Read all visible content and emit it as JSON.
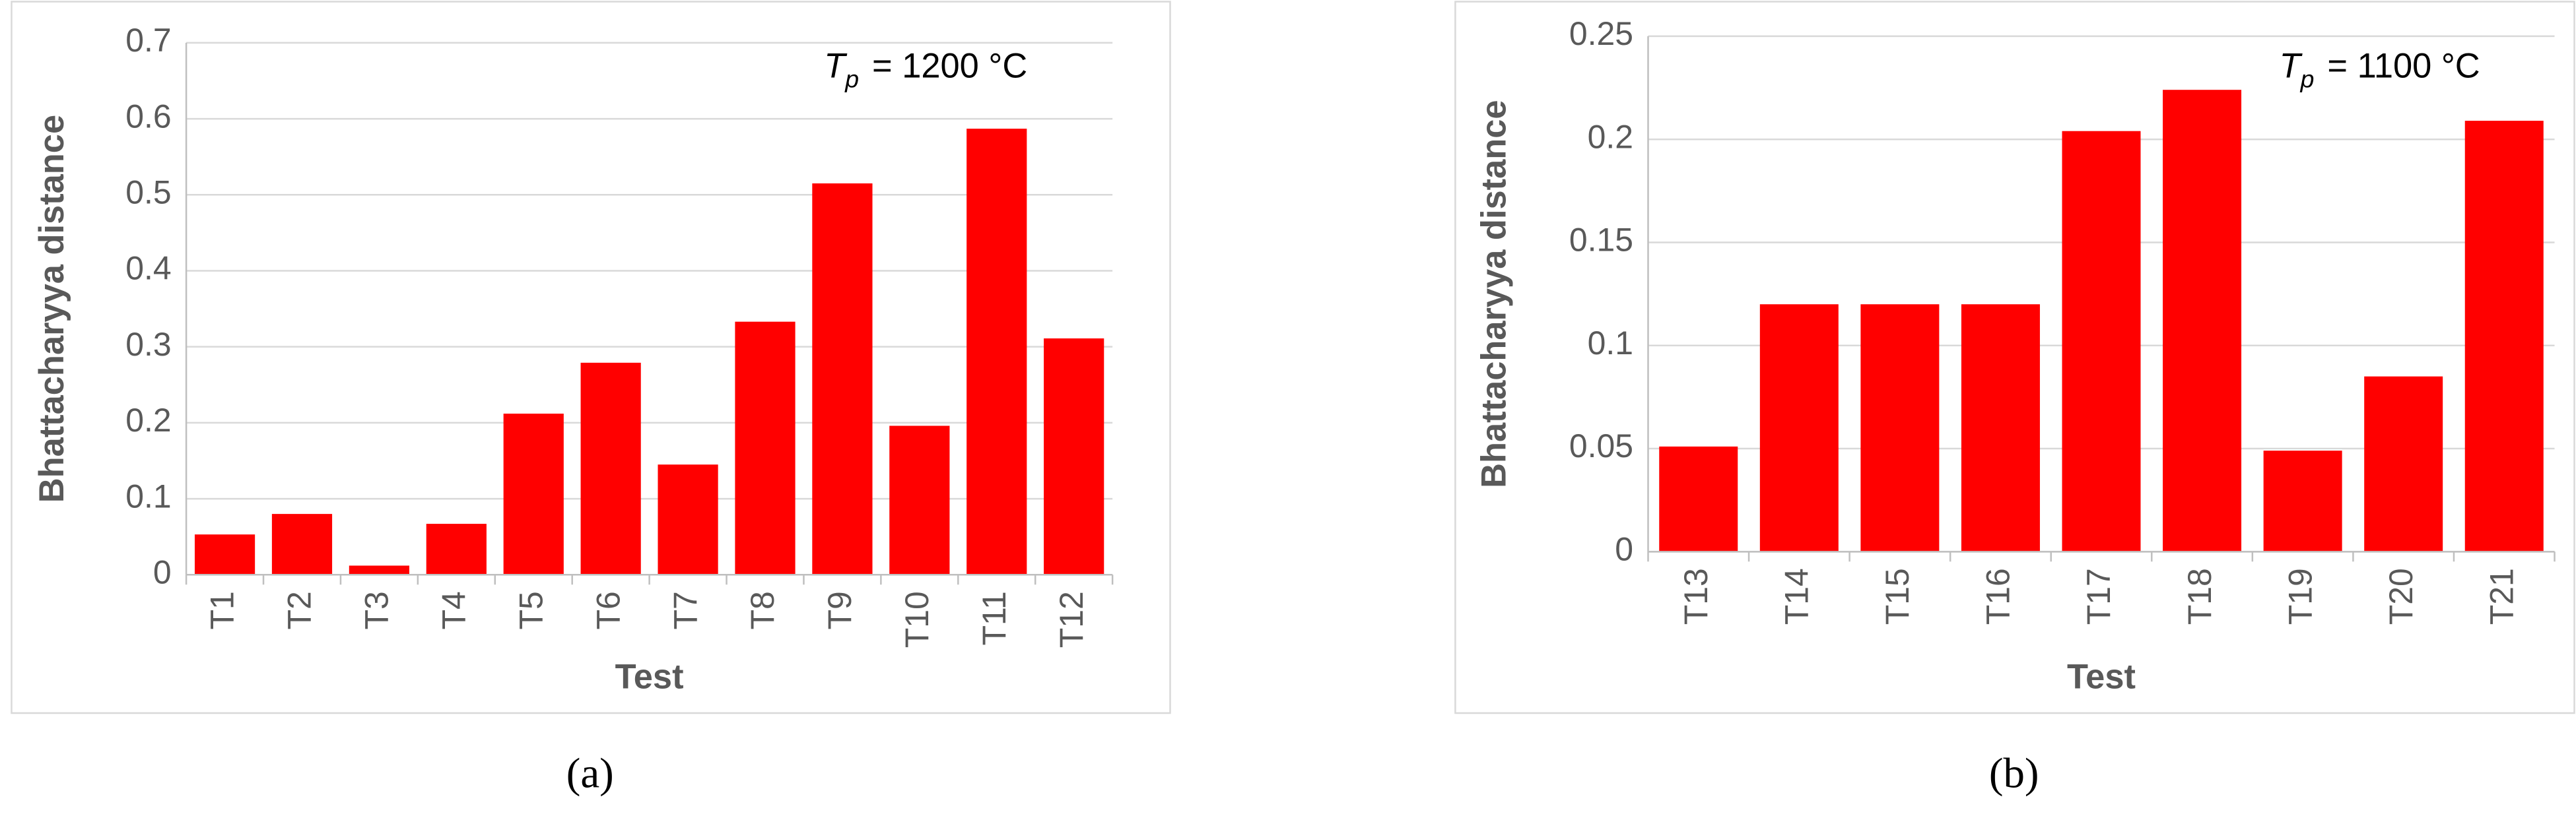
{
  "chart_data": [
    {
      "type": "bar",
      "color": "#ff0000",
      "grid": true,
      "y_label": "Bhattacharyya distance",
      "x_label": "Test",
      "annotation": {
        "symbol": "T",
        "subscript": "p",
        "text": "= 1200 °C"
      },
      "caption": "(a)",
      "categories": [
        "T1",
        "T2",
        "T3",
        "T4",
        "T5",
        "T6",
        "T7",
        "T8",
        "T9",
        "T10",
        "T11",
        "T12"
      ],
      "values": [
        0.053,
        0.08,
        0.012,
        0.067,
        0.212,
        0.279,
        0.145,
        0.333,
        0.515,
        0.196,
        0.587,
        0.311
      ],
      "ylim": [
        0,
        0.7
      ],
      "yticks": [
        0,
        0.1,
        0.2,
        0.3,
        0.4,
        0.5,
        0.6,
        0.7
      ]
    },
    {
      "type": "bar",
      "color": "#ff0000",
      "grid": true,
      "y_label": "Bhattacharyya distance",
      "x_label": "Test",
      "annotation": {
        "symbol": "T",
        "subscript": "p",
        "text": "= 1100 °C"
      },
      "caption": "(b)",
      "categories": [
        "T13",
        "T14",
        "T15",
        "T16",
        "T17",
        "T18",
        "T19",
        "T20",
        "T21"
      ],
      "values": [
        0.051,
        0.12,
        0.12,
        0.12,
        0.204,
        0.224,
        0.049,
        0.085,
        0.209
      ],
      "ylim": [
        0,
        0.25
      ],
      "yticks": [
        0,
        0.05,
        0.1,
        0.15,
        0.2,
        0.25
      ]
    }
  ]
}
